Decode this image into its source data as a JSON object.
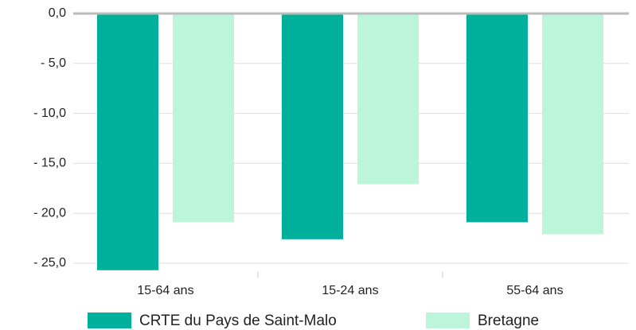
{
  "chart_data": {
    "type": "bar",
    "categories": [
      "15-64 ans",
      "15-24 ans",
      "55-64 ans"
    ],
    "series": [
      {
        "name": "CRTE du Pays de Saint-Malo",
        "color": "#00b09b",
        "values": [
          -25.7,
          -22.6,
          -20.9
        ]
      },
      {
        "name": "Bretagne",
        "color": "#bdf5da",
        "values": [
          -20.9,
          -17.1,
          -22.1
        ]
      }
    ],
    "ylim": [
      -26,
      0
    ],
    "yticks": [
      {
        "value": 0,
        "label": "0,0"
      },
      {
        "value": -5,
        "label": "- 5,0"
      },
      {
        "value": -10,
        "label": "- 10,0"
      },
      {
        "value": -15,
        "label": "- 15,0"
      },
      {
        "value": -20,
        "label": "- 20,0"
      },
      {
        "value": -25,
        "label": "- 25,0"
      }
    ],
    "grid": true
  }
}
